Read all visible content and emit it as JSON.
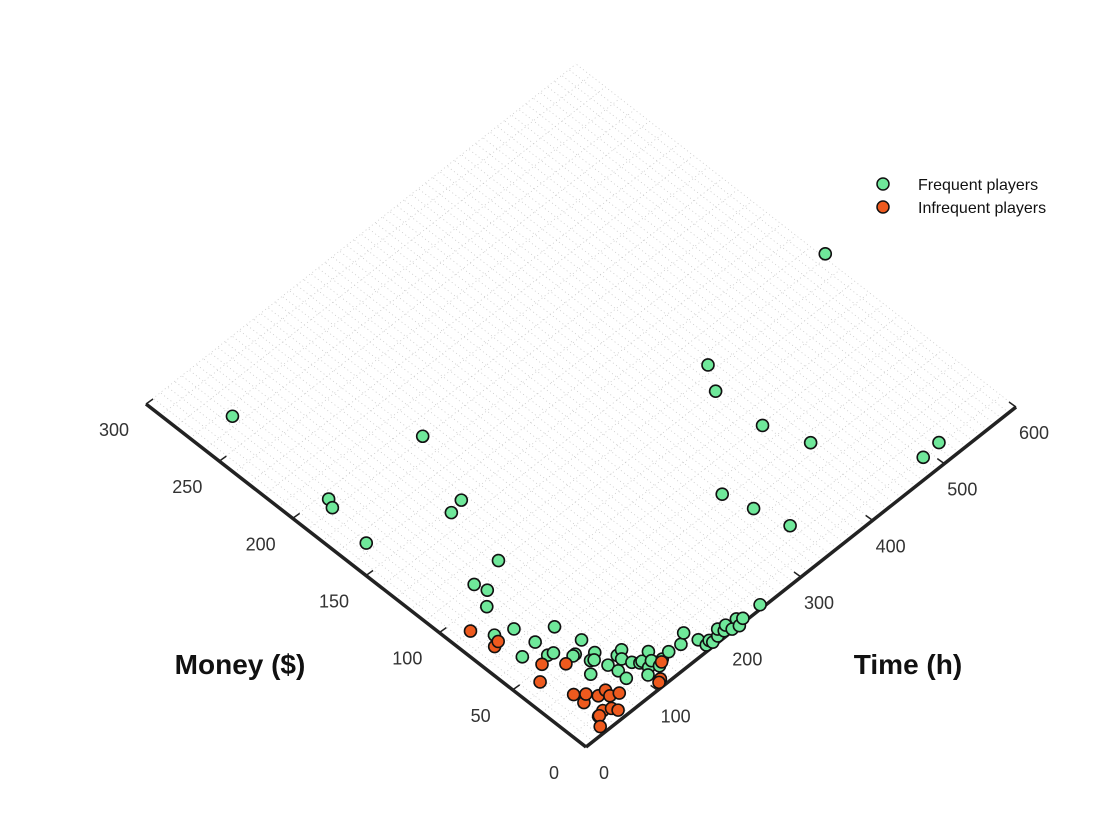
{
  "chart_data": {
    "type": "scatter",
    "title": "",
    "xlabel": "Time (h)",
    "ylabel": "Money ($)",
    "xlim": [
      0,
      600
    ],
    "ylim": [
      0,
      300
    ],
    "x_ticks": [
      0,
      100,
      200,
      300,
      400,
      500,
      600
    ],
    "y_ticks": [
      0,
      50,
      100,
      150,
      200,
      250,
      300
    ],
    "grid": true,
    "legend_position": "top-right",
    "series": [
      {
        "name": "Frequent players",
        "color": "#6FE89A",
        "points": [
          [
            49,
            265
          ],
          [
            42,
            196
          ],
          [
            37,
            191
          ],
          [
            29,
            164
          ],
          [
            163,
            191
          ],
          [
            115,
            148
          ],
          [
            133,
            150
          ],
          [
            67,
            109
          ],
          [
            56,
            95
          ],
          [
            71,
            102
          ],
          [
            105,
            111
          ],
          [
            55,
            76
          ],
          [
            36,
            61
          ],
          [
            36,
            80
          ],
          [
            58,
            63
          ],
          [
            55,
            53
          ],
          [
            61,
            52
          ],
          [
            85,
            63
          ],
          [
            75,
            44
          ],
          [
            92,
            48
          ],
          [
            72,
            44
          ],
          [
            90,
            38
          ],
          [
            80,
            36
          ],
          [
            83,
            35
          ],
          [
            68,
            30
          ],
          [
            88,
            28
          ],
          [
            103,
            29
          ],
          [
            111,
            30
          ],
          [
            90,
            22
          ],
          [
            103,
            26
          ],
          [
            89,
            16
          ],
          [
            107,
            21
          ],
          [
            112,
            18
          ],
          [
            115,
            18
          ],
          [
            114,
            13
          ],
          [
            128,
            20
          ],
          [
            122,
            15
          ],
          [
            107,
            10
          ],
          [
            123,
            10
          ],
          [
            131,
            12
          ],
          [
            142,
            13
          ],
          [
            157,
            12
          ],
          [
            169,
            16
          ],
          [
            173,
            8
          ],
          [
            174,
            3
          ],
          [
            180,
            4
          ],
          [
            181,
            2
          ],
          [
            190,
            3
          ],
          [
            196,
            6
          ],
          [
            199,
            3
          ],
          [
            205,
            5
          ],
          [
            218,
            4
          ],
          [
            206,
            1
          ],
          [
            214,
            0
          ],
          [
            223,
            2
          ],
          [
            247,
            2
          ],
          [
            319,
            63
          ],
          [
            328,
            46
          ],
          [
            338,
            26
          ],
          [
            406,
            110
          ],
          [
            424,
            124
          ],
          [
            408,
            79
          ],
          [
            426,
            55
          ],
          [
            491,
            10
          ],
          [
            515,
            11
          ],
          [
            604,
            132
          ],
          [
            36,
            9
          ]
        ]
      },
      {
        "name": "Infrequent players",
        "color": "#EE5A1E",
        "points": [
          [
            23,
            90
          ],
          [
            26,
            75
          ],
          [
            33,
            76
          ],
          [
            26,
            44
          ],
          [
            43,
            51
          ],
          [
            60,
            43
          ],
          [
            38,
            20
          ],
          [
            47,
            23
          ],
          [
            54,
            18
          ],
          [
            64,
            18
          ],
          [
            62,
            14
          ],
          [
            71,
            12
          ],
          [
            44,
            10
          ],
          [
            37,
            9
          ],
          [
            52,
            8
          ],
          [
            55,
            5
          ],
          [
            28,
            4
          ],
          [
            112,
            4
          ],
          [
            108,
            3
          ],
          [
            128,
            11
          ],
          [
            38,
            27
          ]
        ]
      }
    ]
  }
}
